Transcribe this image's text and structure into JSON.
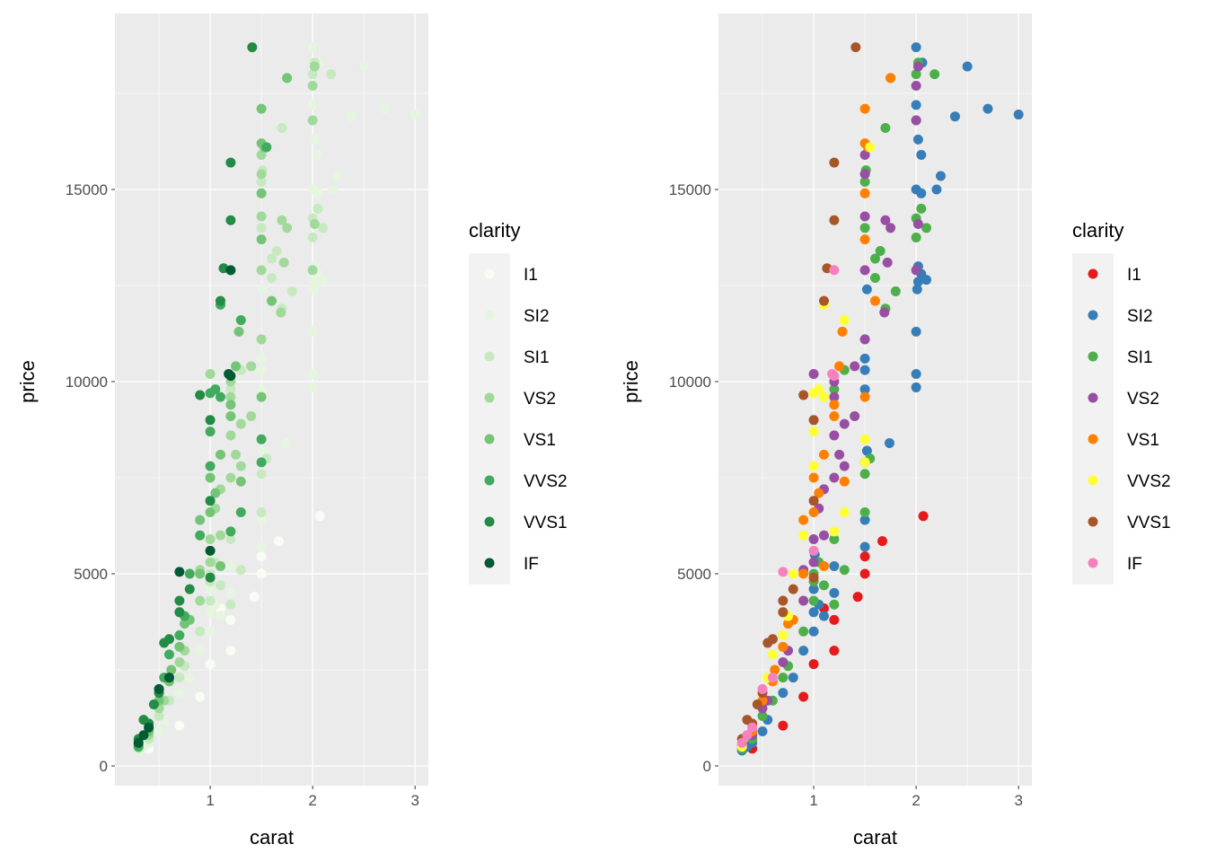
{
  "chart_data": [
    {
      "type": "scatter",
      "xlabel": "carat",
      "ylabel": "price",
      "xlim": [
        0.07,
        3.13
      ],
      "ylim": [
        -514,
        19580
      ],
      "x_ticks": [
        1,
        2,
        3
      ],
      "y_ticks": [
        0,
        5000,
        10000,
        15000
      ],
      "grid": true,
      "legend": {
        "title": "clarity",
        "position": "right"
      },
      "palette": [
        "#F7FCF5",
        "#E5F5E0",
        "#C7E9C0",
        "#A1D99B",
        "#74C476",
        "#41AB5D",
        "#238B45",
        "#005A32"
      ]
    },
    {
      "type": "scatter",
      "xlabel": "carat",
      "ylabel": "price",
      "xlim": [
        0.07,
        3.13
      ],
      "ylim": [
        -514,
        19580
      ],
      "x_ticks": [
        1,
        2,
        3
      ],
      "y_ticks": [
        0,
        5000,
        10000,
        15000
      ],
      "grid": true,
      "legend": {
        "title": "clarity",
        "position": "right"
      },
      "palette": [
        "#E41A1C",
        "#377EB8",
        "#4DAF4A",
        "#984EA3",
        "#FF7F00",
        "#FFFF33",
        "#A65628",
        "#F781BF"
      ]
    }
  ],
  "clarity_levels": [
    "I1",
    "SI2",
    "SI1",
    "VS2",
    "VS1",
    "VVS2",
    "VVS1",
    "IF"
  ],
  "points": {
    "I1": [
      [
        0.7,
        1050
      ],
      [
        0.9,
        1800
      ],
      [
        1.0,
        2650
      ],
      [
        1.2,
        3000
      ],
      [
        1.2,
        3800
      ],
      [
        1.43,
        4400
      ],
      [
        1.5,
        5000
      ],
      [
        1.5,
        5450
      ],
      [
        1.67,
        5850
      ],
      [
        2.07,
        6500
      ],
      [
        1.1,
        4100
      ],
      [
        0.4,
        450
      ]
    ],
    "SI2": [
      [
        0.3,
        400
      ],
      [
        0.35,
        500
      ],
      [
        0.4,
        600
      ],
      [
        0.5,
        900
      ],
      [
        0.55,
        1200
      ],
      [
        0.7,
        1900
      ],
      [
        0.8,
        2300
      ],
      [
        0.9,
        3000
      ],
      [
        1.0,
        3500
      ],
      [
        1.0,
        4000
      ],
      [
        1.05,
        4200
      ],
      [
        1.1,
        3900
      ],
      [
        1.2,
        4500
      ],
      [
        1.5,
        5700
      ],
      [
        1.5,
        6400
      ],
      [
        1.5,
        7900
      ],
      [
        1.52,
        8200
      ],
      [
        1.74,
        8400
      ],
      [
        1.2,
        5200
      ],
      [
        1.0,
        4600
      ],
      [
        1.01,
        5500
      ],
      [
        1.5,
        9800
      ],
      [
        2.0,
        9850
      ],
      [
        2.0,
        10200
      ],
      [
        2.0,
        11300
      ],
      [
        2.01,
        12400
      ],
      [
        2.02,
        12600
      ],
      [
        2.05,
        12800
      ],
      [
        2.1,
        12650
      ],
      [
        2.02,
        13000
      ],
      [
        2.0,
        15000
      ],
      [
        2.05,
        15900
      ],
      [
        2.02,
        16300
      ],
      [
        2.0,
        17200
      ],
      [
        2.0,
        18700
      ],
      [
        2.06,
        18300
      ],
      [
        2.5,
        18200
      ],
      [
        2.7,
        17100
      ],
      [
        3.0,
        16950
      ],
      [
        2.38,
        16900
      ],
      [
        2.24,
        15350
      ],
      [
        2.2,
        15000
      ],
      [
        2.05,
        14900
      ],
      [
        1.5,
        10300
      ],
      [
        1.5,
        10600
      ],
      [
        1.52,
        12400
      ]
    ],
    "SI1": [
      [
        0.3,
        450
      ],
      [
        0.4,
        700
      ],
      [
        0.5,
        1300
      ],
      [
        0.6,
        1700
      ],
      [
        0.7,
        2300
      ],
      [
        0.75,
        2600
      ],
      [
        0.9,
        3500
      ],
      [
        1.0,
        4300
      ],
      [
        1.0,
        5000
      ],
      [
        1.05,
        5300
      ],
      [
        1.2,
        5900
      ],
      [
        1.1,
        4700
      ],
      [
        1.2,
        4200
      ],
      [
        1.3,
        5100
      ],
      [
        1.5,
        6600
      ],
      [
        1.5,
        7600
      ],
      [
        1.55,
        8000
      ],
      [
        1.6,
        13200
      ],
      [
        1.65,
        13400
      ],
      [
        1.5,
        14000
      ],
      [
        1.5,
        15200
      ],
      [
        1.51,
        15500
      ],
      [
        1.7,
        16600
      ],
      [
        1.75,
        17900
      ],
      [
        2.0,
        18000
      ],
      [
        2.02,
        18300
      ],
      [
        2.18,
        18000
      ],
      [
        2.0,
        16800
      ],
      [
        2.1,
        14000
      ],
      [
        2.0,
        14250
      ],
      [
        2.0,
        13750
      ],
      [
        2.05,
        14500
      ],
      [
        1.8,
        12350
      ],
      [
        1.3,
        10300
      ],
      [
        1.2,
        9800
      ],
      [
        1.7,
        11900
      ],
      [
        1.6,
        12700
      ],
      [
        1.0,
        4800
      ]
    ],
    "VS2": [
      [
        0.3,
        500
      ],
      [
        0.4,
        800
      ],
      [
        0.5,
        1500
      ],
      [
        0.55,
        1700
      ],
      [
        0.7,
        2700
      ],
      [
        0.75,
        3000
      ],
      [
        0.9,
        4300
      ],
      [
        1.0,
        5300
      ],
      [
        1.0,
        5900
      ],
      [
        1.05,
        6700
      ],
      [
        1.1,
        7200
      ],
      [
        1.2,
        7500
      ],
      [
        1.2,
        8600
      ],
      [
        1.25,
        8100
      ],
      [
        1.2,
        9600
      ],
      [
        1.0,
        10200
      ],
      [
        1.2,
        10000
      ],
      [
        1.4,
        10400
      ],
      [
        1.5,
        11100
      ],
      [
        1.5,
        12900
      ],
      [
        1.5,
        14300
      ],
      [
        1.5,
        15400
      ],
      [
        1.5,
        15900
      ],
      [
        1.7,
        14200
      ],
      [
        1.72,
        13100
      ],
      [
        1.75,
        14000
      ],
      [
        1.69,
        11800
      ],
      [
        1.3,
        8900
      ],
      [
        1.3,
        7800
      ],
      [
        2.0,
        17700
      ],
      [
        2.02,
        18200
      ],
      [
        2.0,
        16800
      ],
      [
        2.0,
        12900
      ],
      [
        2.02,
        14100
      ],
      [
        1.1,
        6000
      ],
      [
        0.9,
        5100
      ],
      [
        1.4,
        9100
      ]
    ],
    "VS1": [
      [
        0.3,
        550
      ],
      [
        0.4,
        900
      ],
      [
        0.5,
        1700
      ],
      [
        0.6,
        2200
      ],
      [
        0.7,
        3100
      ],
      [
        0.75,
        3700
      ],
      [
        0.8,
        3800
      ],
      [
        0.9,
        5000
      ],
      [
        0.9,
        6400
      ],
      [
        1.0,
        6600
      ],
      [
        1.0,
        7500
      ],
      [
        1.05,
        7100
      ],
      [
        1.1,
        8100
      ],
      [
        1.2,
        9100
      ],
      [
        1.2,
        9400
      ],
      [
        1.25,
        10400
      ],
      [
        1.28,
        11300
      ],
      [
        1.5,
        9600
      ],
      [
        1.5,
        13700
      ],
      [
        1.5,
        14900
      ],
      [
        1.5,
        16200
      ],
      [
        1.53,
        16100
      ],
      [
        1.5,
        17100
      ],
      [
        1.75,
        17900
      ],
      [
        1.6,
        12100
      ],
      [
        1.3,
        7400
      ],
      [
        1.1,
        5200
      ],
      [
        0.62,
        2500
      ]
    ],
    "VVS2": [
      [
        0.3,
        500
      ],
      [
        0.4,
        1100
      ],
      [
        0.5,
        2000
      ],
      [
        0.55,
        2300
      ],
      [
        0.7,
        3400
      ],
      [
        0.75,
        3900
      ],
      [
        0.9,
        6000
      ],
      [
        1.0,
        7800
      ],
      [
        1.0,
        8700
      ],
      [
        1.0,
        9700
      ],
      [
        1.05,
        9800
      ],
      [
        1.1,
        9600
      ],
      [
        1.1,
        12000
      ],
      [
        1.3,
        11600
      ],
      [
        1.5,
        8500
      ],
      [
        1.5,
        7900
      ],
      [
        1.55,
        16100
      ],
      [
        0.6,
        2900
      ],
      [
        1.2,
        6100
      ],
      [
        1.3,
        6600
      ],
      [
        0.8,
        5000
      ]
    ],
    "VVS1": [
      [
        0.3,
        700
      ],
      [
        0.35,
        1200
      ],
      [
        0.4,
        1100
      ],
      [
        0.5,
        1900
      ],
      [
        0.55,
        3200
      ],
      [
        0.6,
        3300
      ],
      [
        0.7,
        4000
      ],
      [
        0.7,
        4300
      ],
      [
        0.8,
        4600
      ],
      [
        1.0,
        6900
      ],
      [
        1.0,
        9000
      ],
      [
        1.1,
        12100
      ],
      [
        1.13,
        12950
      ],
      [
        1.2,
        14200
      ],
      [
        1.2,
        15700
      ],
      [
        1.41,
        18700
      ],
      [
        0.9,
        9650
      ],
      [
        0.45,
        1600
      ],
      [
        1.0,
        4900
      ]
    ],
    "IF": [
      [
        0.3,
        600
      ],
      [
        0.35,
        800
      ],
      [
        0.4,
        1000
      ],
      [
        0.5,
        2000
      ],
      [
        0.7,
        5050
      ],
      [
        0.6,
        2300
      ],
      [
        1.2,
        12900
      ],
      [
        1.2,
        10150
      ],
      [
        1.0,
        5600
      ],
      [
        1.18,
        10200
      ]
    ]
  }
}
